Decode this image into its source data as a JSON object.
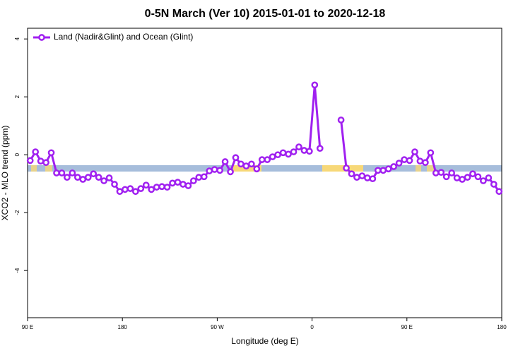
{
  "chart_data": {
    "type": "line",
    "title": "0-5N March (Ver 10)   2015-01-01 to 2020-12-18",
    "xlabel": "Longitude (deg E)",
    "ylabel": "XCO2 - MLO trend (ppm)",
    "xlim": [
      90,
      540
    ],
    "ylim": [
      -5.63,
      4.37
    ],
    "xticks": [
      {
        "value": 90,
        "label": "90 E"
      },
      180,
      {
        "value": 270,
        "label": "90 W"
      },
      {
        "value": 360,
        "label": "0"
      },
      {
        "value": 450,
        "label": "90 E"
      },
      {
        "value": 540,
        "label": "180"
      }
    ],
    "yticks": [
      -4,
      -2,
      0,
      2,
      4
    ],
    "legend": "upper left",
    "x": [
      92.5,
      97.5,
      102.5,
      107.5,
      112.5,
      117.5,
      122.5,
      127.5,
      132.5,
      137.5,
      142.5,
      147.5,
      152.5,
      157.5,
      162.5,
      167.5,
      172.5,
      177.5,
      182.5,
      187.5,
      192.5,
      197.5,
      202.5,
      207.5,
      212.5,
      217.5,
      222.5,
      227.5,
      232.5,
      237.5,
      242.5,
      247.5,
      252.5,
      257.5,
      262.5,
      267.5,
      272.5,
      277.5,
      282.5,
      287.5,
      292.5,
      297.5,
      302.5,
      307.5,
      312.5,
      317.5,
      322.5,
      327.5,
      332.5,
      337.5,
      342.5,
      347.5,
      352.5,
      357.5,
      362.5,
      367.5,
      372.5,
      377.5,
      382.5,
      387.5,
      392.5,
      397.5,
      402.5,
      407.5,
      412.5,
      417.5,
      422.5,
      427.5,
      432.5,
      437.5,
      442.5,
      447.5,
      452.5,
      457.5,
      462.5,
      467.5,
      472.5,
      477.5,
      482.5,
      487.5,
      492.5,
      497.5,
      502.5,
      507.5,
      512.5,
      517.5,
      522.5,
      527.5,
      532.5,
      537.5
    ],
    "series": [
      {
        "name": "Land (Nadir&Glint) and Ocean (Glint)",
        "color": "#a020f0",
        "values": [
          -0.2,
          0.1,
          -0.22,
          -0.27,
          0.07,
          -0.63,
          -0.63,
          -0.78,
          -0.63,
          -0.78,
          -0.85,
          -0.78,
          -0.66,
          -0.78,
          -0.9,
          -0.8,
          -1.02,
          -1.27,
          -1.2,
          -1.17,
          -1.27,
          -1.17,
          -1.05,
          -1.2,
          -1.12,
          -1.1,
          -1.12,
          -0.98,
          -0.95,
          -1.02,
          -1.07,
          -0.9,
          -0.78,
          -0.76,
          -0.56,
          -0.51,
          -0.54,
          -0.24,
          -0.59,
          -0.1,
          -0.32,
          -0.39,
          -0.32,
          -0.49,
          -0.17,
          -0.17,
          -0.07,
          0,
          0.07,
          0.02,
          0.1,
          0.27,
          0.15,
          0.12,
          2.41,
          0.22,
          null,
          null,
          null,
          1.2,
          -0.46,
          -0.66,
          -0.78,
          -0.73,
          -0.8,
          -0.83,
          -0.54,
          -0.54,
          -0.49,
          -0.41,
          -0.29,
          -0.17,
          -0.2,
          0.1,
          -0.22,
          -0.27,
          0.07,
          -0.63,
          -0.61,
          -0.76,
          -0.63,
          -0.8,
          -0.85,
          -0.78,
          -0.66,
          -0.76,
          -0.9,
          -0.8,
          -1.02,
          -1.27
        ]
      }
    ]
  }
}
